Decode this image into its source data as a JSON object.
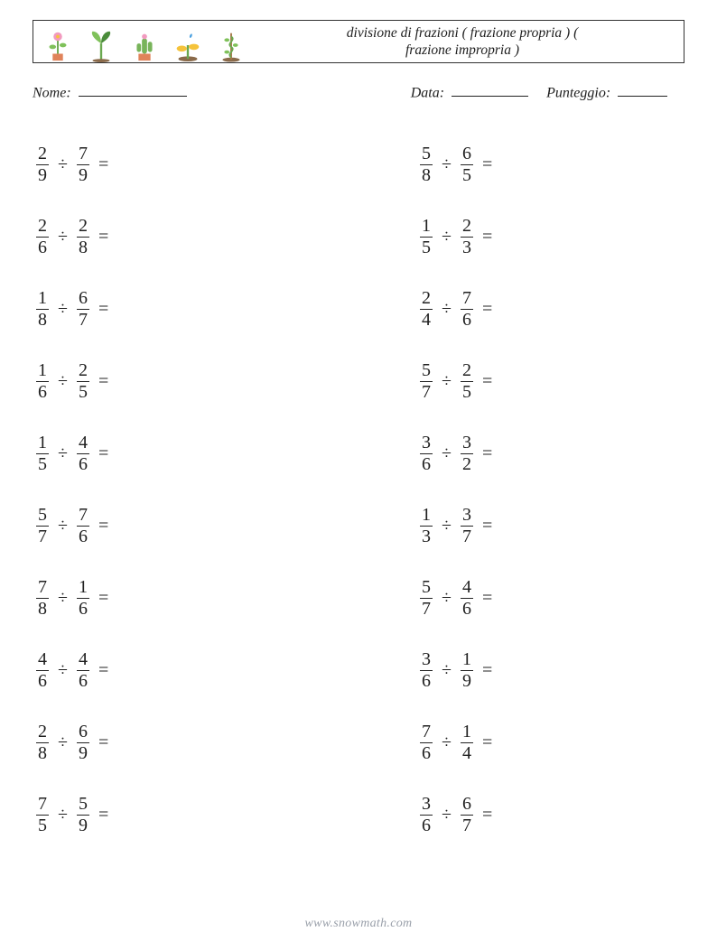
{
  "header": {
    "title_line1": "divisione di frazioni ( frazione propria ) (",
    "title_line2": "frazione impropria )",
    "icon_colors": {
      "stem": "#6aa84f",
      "leaf": "#7fc15a",
      "leaf_dark": "#4a8c3a",
      "pot": "#e0835a",
      "flower_pink": "#f29abf",
      "flower_yellow": "#f5c33b",
      "cactus": "#78b45a",
      "drop": "#4aa0e0"
    }
  },
  "info": {
    "name_label": "Nome:",
    "date_label": "Data:",
    "score_label": "Punteggio:"
  },
  "symbols": {
    "divide": "÷",
    "equals": "="
  },
  "columns": {
    "left": [
      {
        "a_num": "2",
        "a_den": "9",
        "b_num": "7",
        "b_den": "9"
      },
      {
        "a_num": "2",
        "a_den": "6",
        "b_num": "2",
        "b_den": "8"
      },
      {
        "a_num": "1",
        "a_den": "8",
        "b_num": "6",
        "b_den": "7"
      },
      {
        "a_num": "1",
        "a_den": "6",
        "b_num": "2",
        "b_den": "5"
      },
      {
        "a_num": "1",
        "a_den": "5",
        "b_num": "4",
        "b_den": "6"
      },
      {
        "a_num": "5",
        "a_den": "7",
        "b_num": "7",
        "b_den": "6"
      },
      {
        "a_num": "7",
        "a_den": "8",
        "b_num": "1",
        "b_den": "6"
      },
      {
        "a_num": "4",
        "a_den": "6",
        "b_num": "4",
        "b_den": "6"
      },
      {
        "a_num": "2",
        "a_den": "8",
        "b_num": "6",
        "b_den": "9"
      },
      {
        "a_num": "7",
        "a_den": "5",
        "b_num": "5",
        "b_den": "9"
      }
    ],
    "right": [
      {
        "a_num": "5",
        "a_den": "8",
        "b_num": "6",
        "b_den": "5"
      },
      {
        "a_num": "1",
        "a_den": "5",
        "b_num": "2",
        "b_den": "3"
      },
      {
        "a_num": "2",
        "a_den": "4",
        "b_num": "7",
        "b_den": "6"
      },
      {
        "a_num": "5",
        "a_den": "7",
        "b_num": "2",
        "b_den": "5"
      },
      {
        "a_num": "3",
        "a_den": "6",
        "b_num": "3",
        "b_den": "2"
      },
      {
        "a_num": "1",
        "a_den": "3",
        "b_num": "3",
        "b_den": "7"
      },
      {
        "a_num": "5",
        "a_den": "7",
        "b_num": "4",
        "b_den": "6"
      },
      {
        "a_num": "3",
        "a_den": "6",
        "b_num": "1",
        "b_den": "9"
      },
      {
        "a_num": "7",
        "a_den": "6",
        "b_num": "1",
        "b_den": "4"
      },
      {
        "a_num": "3",
        "a_den": "6",
        "b_num": "6",
        "b_den": "7"
      }
    ]
  },
  "footer": {
    "text": "www.snowmath.com"
  }
}
